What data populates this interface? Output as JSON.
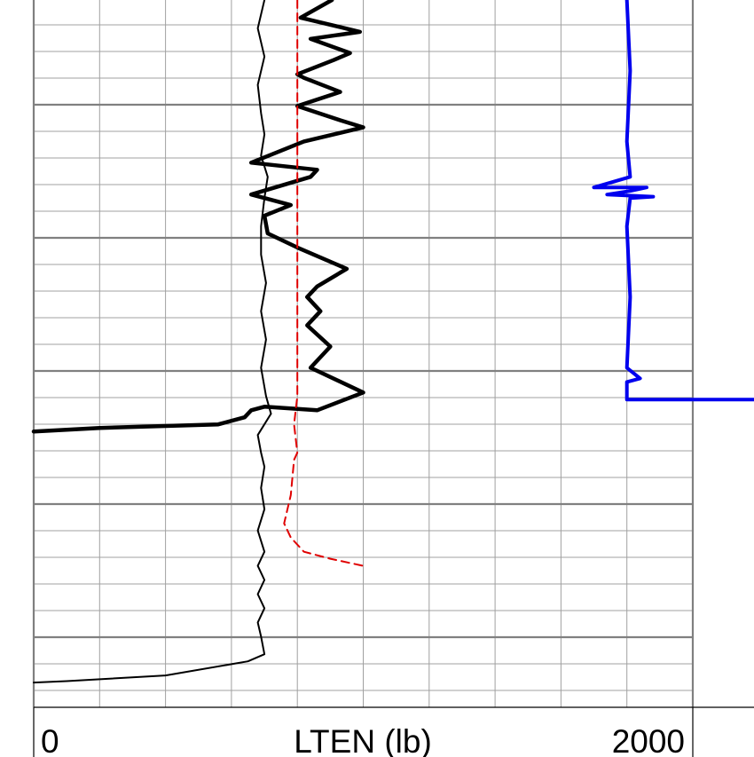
{
  "chart_data": {
    "type": "line",
    "title": "",
    "x_axis": {
      "label": "LTEN (lb)",
      "range": [
        0,
        2000
      ],
      "tick_labels": [
        "0",
        "2000"
      ],
      "grid_major_divisions": 10,
      "grid": true
    },
    "y_axis": {
      "label": "",
      "tick_labels": [],
      "grid_minor_rows": 26,
      "grid": true
    },
    "colors": {
      "grid_major": "#808080",
      "grid_minor": "#a0a0a0",
      "thin_curve": "#000000",
      "thick_curve": "#000000",
      "dashed_curve": "#e00000",
      "blue_curve": "#0000ee",
      "axis": "#000000"
    },
    "series": [
      {
        "style": "thin-black",
        "points": [
          [
            700,
            0
          ],
          [
            680,
            40
          ],
          [
            700,
            80
          ],
          [
            680,
            120
          ],
          [
            690,
            160
          ],
          [
            700,
            190
          ],
          [
            690,
            220
          ],
          [
            710,
            250
          ],
          [
            700,
            280
          ],
          [
            690,
            320
          ],
          [
            690,
            360
          ],
          [
            705,
            400
          ],
          [
            690,
            440
          ],
          [
            705,
            480
          ],
          [
            690,
            520
          ],
          [
            705,
            560
          ],
          [
            720,
            585
          ],
          [
            680,
            615
          ],
          [
            690,
            640
          ],
          [
            700,
            660
          ],
          [
            690,
            690
          ],
          [
            700,
            720
          ],
          [
            680,
            750
          ],
          [
            700,
            780
          ],
          [
            680,
            800
          ],
          [
            700,
            820
          ],
          [
            680,
            840
          ],
          [
            700,
            860
          ],
          [
            680,
            880
          ],
          [
            690,
            900
          ],
          [
            700,
            925
          ],
          [
            650,
            935
          ],
          [
            400,
            955
          ],
          [
            100,
            963
          ],
          [
            0,
            965
          ]
        ]
      },
      {
        "style": "thick-black",
        "points": [
          [
            905,
            0
          ],
          [
            810,
            25
          ],
          [
            990,
            45
          ],
          [
            840,
            55
          ],
          [
            960,
            75
          ],
          [
            910,
            85
          ],
          [
            800,
            105
          ],
          [
            820,
            110
          ],
          [
            930,
            130
          ],
          [
            800,
            150
          ],
          [
            930,
            170
          ],
          [
            1000,
            180
          ],
          [
            820,
            200
          ],
          [
            660,
            230
          ],
          [
            860,
            240
          ],
          [
            840,
            250
          ],
          [
            660,
            275
          ],
          [
            780,
            290
          ],
          [
            700,
            305
          ],
          [
            710,
            330
          ],
          [
            800,
            350
          ],
          [
            950,
            380
          ],
          [
            860,
            405
          ],
          [
            830,
            420
          ],
          [
            870,
            440
          ],
          [
            830,
            460
          ],
          [
            900,
            490
          ],
          [
            840,
            520
          ],
          [
            1000,
            555
          ],
          [
            860,
            580
          ],
          [
            700,
            575
          ],
          [
            660,
            580
          ],
          [
            640,
            590
          ],
          [
            560,
            600
          ],
          [
            200,
            605
          ],
          [
            0,
            610
          ]
        ]
      },
      {
        "style": "dashed-red",
        "points": [
          [
            800,
            0
          ],
          [
            800,
            560
          ],
          [
            790,
            600
          ],
          [
            800,
            640
          ],
          [
            790,
            650
          ],
          [
            780,
            700
          ],
          [
            760,
            740
          ],
          [
            780,
            760
          ],
          [
            820,
            780
          ],
          [
            900,
            790
          ],
          [
            1000,
            800
          ]
        ]
      },
      {
        "style": "thick-blue",
        "points": [
          [
            1800,
            0
          ],
          [
            1810,
            100
          ],
          [
            1800,
            200
          ],
          [
            1810,
            250
          ],
          [
            1700,
            265
          ],
          [
            1860,
            265
          ],
          [
            1810,
            270
          ],
          [
            1740,
            275
          ],
          [
            1880,
            278
          ],
          [
            1810,
            280
          ],
          [
            1800,
            320
          ],
          [
            1810,
            420
          ],
          [
            1800,
            520
          ],
          [
            1840,
            535
          ],
          [
            1800,
            540
          ],
          [
            1800,
            565
          ],
          [
            2200,
            565
          ]
        ]
      }
    ]
  }
}
